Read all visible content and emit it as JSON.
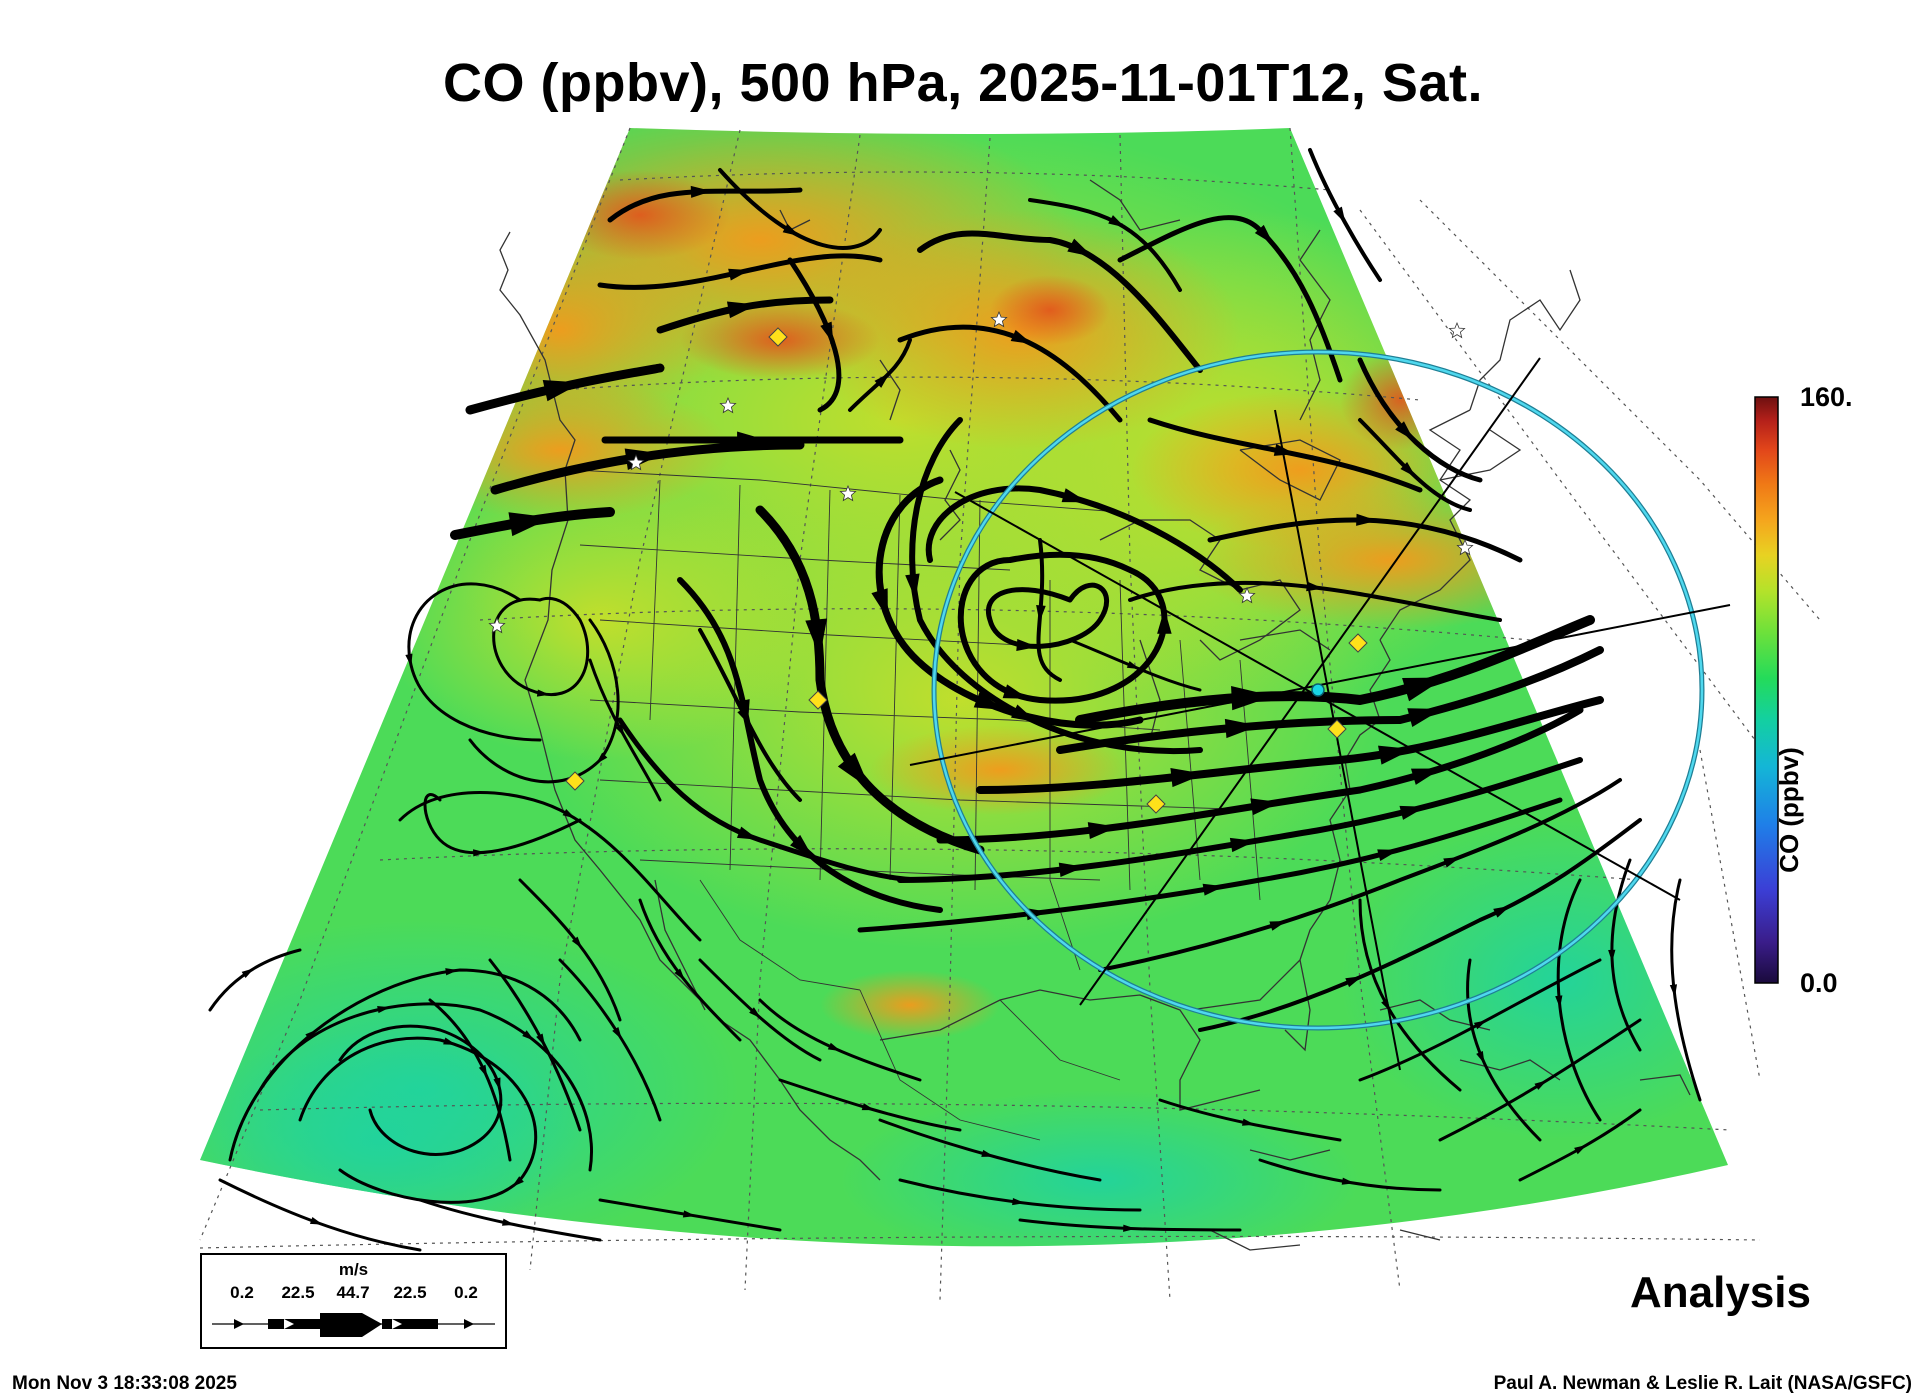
{
  "title": "CO (ppbv), 500 hPa, 2025-11-01T12, Sat.",
  "product_label": "Analysis",
  "timestamp": "Mon Nov  3 18:33:08 2025",
  "credit": "Paul A. Newman & Leslie R. Lait (NASA/GSFC)",
  "colorbar": {
    "title": "CO (ppbv)",
    "max_label": "160.",
    "min_label": "0.0",
    "range": [
      0,
      160
    ],
    "colors": [
      "#1a0a3c",
      "#3a1d8a",
      "#3b3fd6",
      "#1f7fe8",
      "#14b6d6",
      "#13d0a0",
      "#24db5a",
      "#6fe13a",
      "#b5e22a",
      "#e8d222",
      "#f5a51d",
      "#f07a16",
      "#e2461a",
      "#b4201a",
      "#6e1010"
    ]
  },
  "wind_legend": {
    "unit": "m/s",
    "ticks": [
      "0.2",
      "22.5",
      "44.7",
      "22.5",
      "0.2"
    ]
  },
  "map": {
    "field_colors": {
      "background_green": "#48dc5a",
      "teal": "#22d6a0",
      "yellow_green": "#b2e02c",
      "orange": "#f3a71d",
      "red_orange": "#ee7a1c"
    },
    "ring_color": "#29b7d4",
    "marker_color": "#ffe11a",
    "station_color": "#ffffff",
    "center_marker_color": "#18d6e6"
  }
}
